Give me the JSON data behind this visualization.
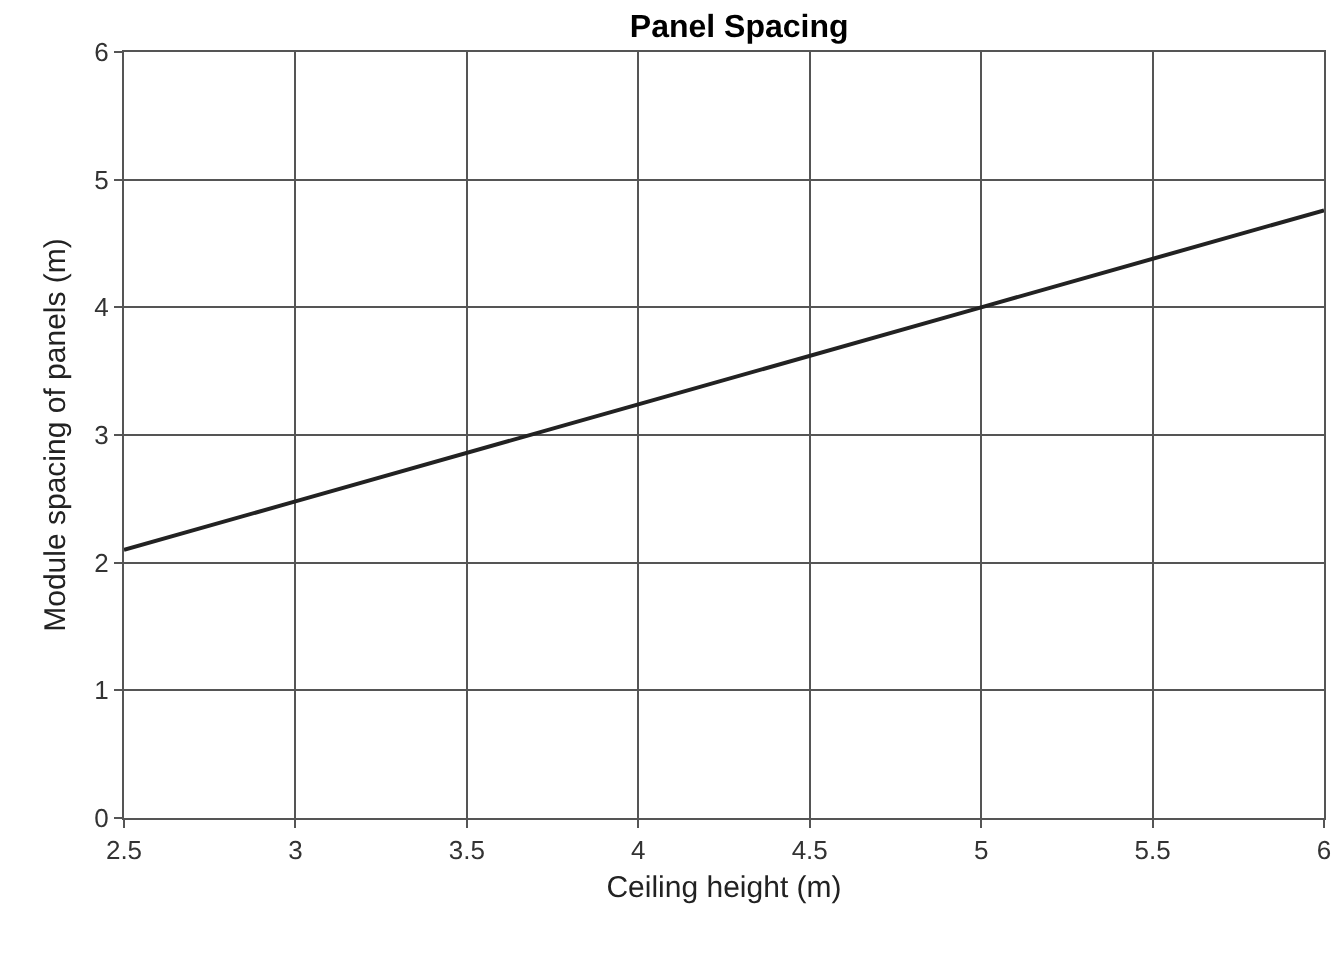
{
  "chart_data": {
    "type": "line",
    "title": "Panel Spacing",
    "xlabel": "Ceiling height (m)",
    "ylabel": "Module spacing of panels (m)",
    "x": [
      2.5,
      3,
      4,
      5,
      6
    ],
    "series": [
      {
        "color": "#222222",
        "values": [
          2.1,
          2.48,
          3.24,
          4.0,
          4.76
        ]
      }
    ],
    "xlim": [
      2.5,
      6
    ],
    "xticks": [
      2.5,
      3,
      3.5,
      4,
      4.5,
      5,
      5.5,
      6
    ],
    "ylim": [
      0,
      6
    ],
    "yticks": [
      0,
      1,
      2,
      3,
      4,
      5,
      6
    ],
    "grid": true,
    "marker": "none",
    "line_style": "solid"
  }
}
